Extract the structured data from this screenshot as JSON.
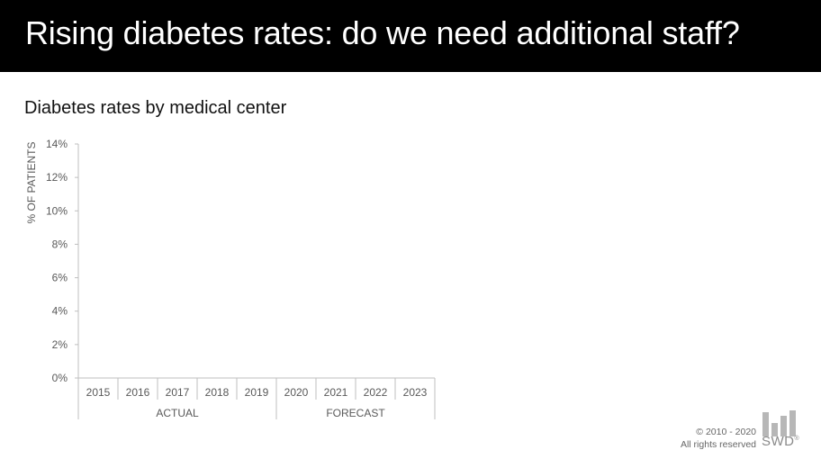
{
  "header": {
    "title": "Rising diabetes rates: do we need additional staff?"
  },
  "colors": {
    "header_bg": "#000000",
    "axis": "#bfbfbf",
    "tick_text": "#595959"
  },
  "chart_data": {
    "type": "line",
    "title": "Diabetes rates by medical center",
    "ylabel": "% OF PATIENTS",
    "xlabel": "",
    "ylim": [
      0,
      14
    ],
    "yticks": [
      0,
      2,
      4,
      6,
      8,
      10,
      12,
      14
    ],
    "ytick_labels": [
      "0%",
      "2%",
      "4%",
      "6%",
      "8%",
      "10%",
      "12%",
      "14%"
    ],
    "categories": [
      "2015",
      "2016",
      "2017",
      "2018",
      "2019",
      "2020",
      "2021",
      "2022",
      "2023"
    ],
    "groups": [
      {
        "label": "ACTUAL",
        "categories": [
          "2015",
          "2016",
          "2017",
          "2018",
          "2019"
        ]
      },
      {
        "label": "FORECAST",
        "categories": [
          "2020",
          "2021",
          "2022",
          "2023"
        ]
      }
    ],
    "series": [],
    "grid": false
  },
  "footer": {
    "copyright": "© 2010 - 2020",
    "rights": "All rights reserved",
    "brand": "SWD",
    "brand_mark": "®"
  }
}
